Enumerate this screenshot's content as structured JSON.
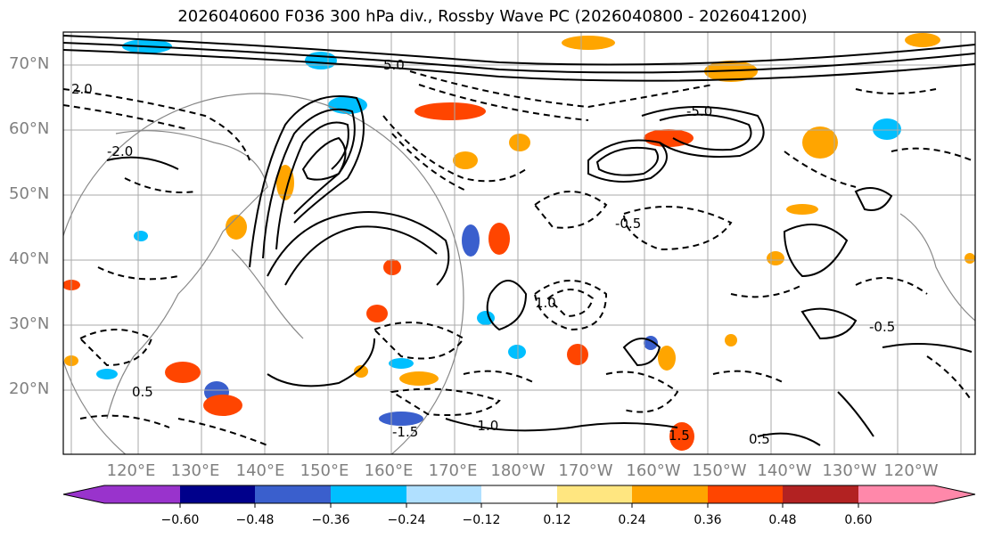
{
  "title": "2026040600 F036 300 hPa div., Rossby Wave PC (2026040800 - 2026041200)",
  "latitude_labels": [
    "70°N",
    "60°N",
    "50°N",
    "40°N",
    "30°N",
    "20°N"
  ],
  "longitude_labels": [
    "120°E",
    "130°E",
    "140°E",
    "150°E",
    "160°E",
    "170°E",
    "180°W",
    "170°W",
    "160°W",
    "150°W",
    "140°W",
    "130°W",
    "120°W"
  ],
  "colorbar": {
    "ticks": [
      "−0.60",
      "−0.48",
      "−0.36",
      "−0.24",
      "−0.12",
      "0.12",
      "0.24",
      "0.36",
      "0.48",
      "0.60"
    ],
    "colors": [
      "#9933cc",
      "#00008b",
      "#3a5fcd",
      "#00bfff",
      "#b0e0ff",
      "#ffffff",
      "#ffe680",
      "#ffa500",
      "#ff4500",
      "#b22222",
      "#ff88aa"
    ]
  },
  "contour_labels": [
    {
      "text": "5.0"
    },
    {
      "text": "-5.0"
    },
    {
      "text": "0.5"
    },
    {
      "text": "-0.5"
    },
    {
      "text": "1.0"
    },
    {
      "text": "-1.0"
    },
    {
      "text": "2.0"
    },
    {
      "text": "1.5"
    },
    {
      "text": "-1.5"
    },
    {
      "text": "-2.0"
    }
  ]
}
